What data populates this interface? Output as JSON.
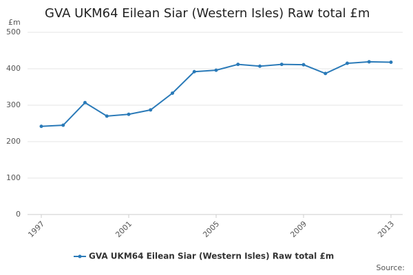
{
  "chart_data": {
    "type": "line",
    "title": "GVA UKM64 Eilean Siar (Western Isles) Raw total £m",
    "y_unit": "£m",
    "source": "Source:",
    "x": [
      1997,
      1998,
      1999,
      2000,
      2001,
      2002,
      2003,
      2004,
      2005,
      2006,
      2007,
      2008,
      2009,
      2010,
      2011,
      2012,
      2013
    ],
    "series": [
      {
        "name": "GVA UKM64 Eilean Siar (Western Isles) Raw total £m",
        "color": "#2a7ab8",
        "values": [
          242,
          245,
          307,
          270,
          275,
          287,
          333,
          392,
          396,
          412,
          407,
          412,
          411,
          387,
          415,
          419,
          418
        ]
      }
    ],
    "xlim": [
      1997,
      2013
    ],
    "xticks": [
      1997,
      2001,
      2005,
      2009,
      2013
    ],
    "ylim": [
      0,
      500
    ],
    "yticks": [
      0,
      100,
      200,
      300,
      400,
      500
    ],
    "grid": true,
    "legend": "bottom"
  }
}
